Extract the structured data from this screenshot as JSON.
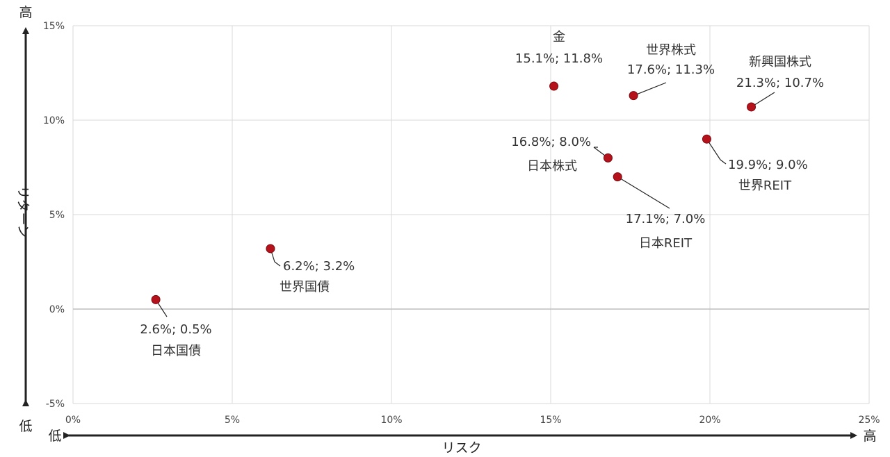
{
  "chart_data": {
    "type": "scatter",
    "title": "",
    "xlabel": "リスク",
    "ylabel": "リターン",
    "xlim": [
      0,
      25
    ],
    "ylim": [
      -5,
      15
    ],
    "xticks": [
      "0%",
      "5%",
      "10%",
      "15%",
      "20%",
      "25%"
    ],
    "yticks": [
      "-5%",
      "0%",
      "5%",
      "10%",
      "15%"
    ],
    "grid": true,
    "axis_ends": {
      "y_high": "高",
      "y_low": "低",
      "x_low": "低",
      "x_high": "高"
    },
    "point_color": "#b5121b",
    "points": [
      {
        "name": "日本国債",
        "x": 2.6,
        "y": 0.5,
        "label": "2.6%; 0.5%"
      },
      {
        "name": "世界国債",
        "x": 6.2,
        "y": 3.2,
        "label": "6.2%; 3.2%"
      },
      {
        "name": "金",
        "x": 15.1,
        "y": 11.8,
        "label": "15.1%; 11.8%"
      },
      {
        "name": "日本株式",
        "x": 16.8,
        "y": 8.0,
        "label": "16.8%; 8.0%"
      },
      {
        "name": "日本REIT",
        "x": 17.1,
        "y": 7.0,
        "label": "17.1%; 7.0%"
      },
      {
        "name": "世界株式",
        "x": 17.6,
        "y": 11.3,
        "label": "17.6%; 11.3%"
      },
      {
        "name": "世界REIT",
        "x": 19.9,
        "y": 9.0,
        "label": "19.9%; 9.0%"
      },
      {
        "name": "新興国株式",
        "x": 21.3,
        "y": 10.7,
        "label": "21.3%; 10.7%"
      }
    ]
  }
}
